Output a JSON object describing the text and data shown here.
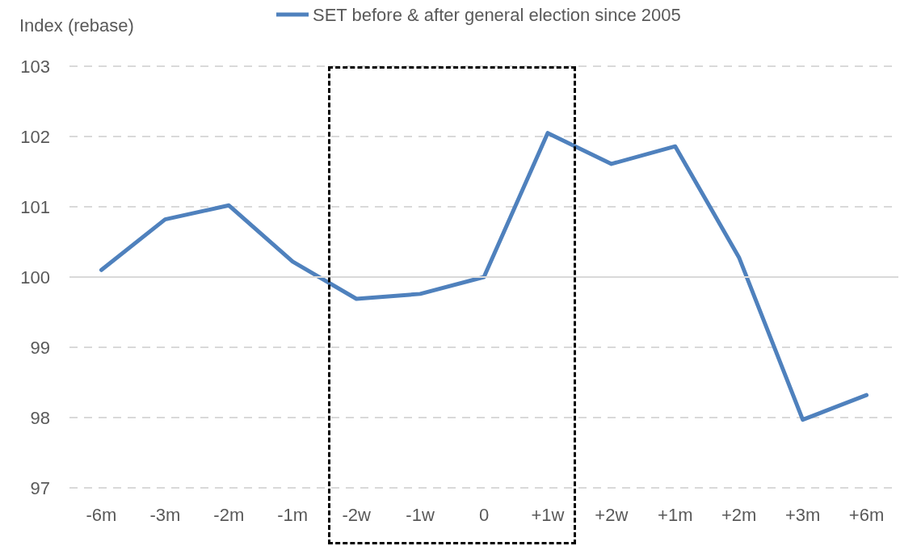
{
  "chart_data": {
    "type": "line",
    "ylabel": "Index (rebase)",
    "categories": [
      "-6m",
      "-3m",
      "-2m",
      "-1m",
      "-2w",
      "-1w",
      "0",
      "+1w",
      "+2w",
      "+1m",
      "+2m",
      "+3m",
      "+6m"
    ],
    "series": [
      {
        "name": "SET before & after general election since 2005",
        "color": "#4f81bd",
        "values": [
          100.1,
          100.82,
          101.02,
          100.22,
          99.69,
          99.76,
          100,
          102.05,
          101.61,
          101.86,
          100.28,
          97.97,
          98.32
        ]
      }
    ],
    "ylim": [
      97,
      103
    ],
    "yticks": [
      97,
      98,
      99,
      100,
      101,
      102,
      103
    ],
    "grid": "y",
    "legend": "top",
    "marker": "none",
    "line_style": "solid",
    "ref_lines": [
      {
        "axis": "y",
        "value": 100,
        "color": "#d9d9d9",
        "line_style": "solid"
      }
    ]
  }
}
